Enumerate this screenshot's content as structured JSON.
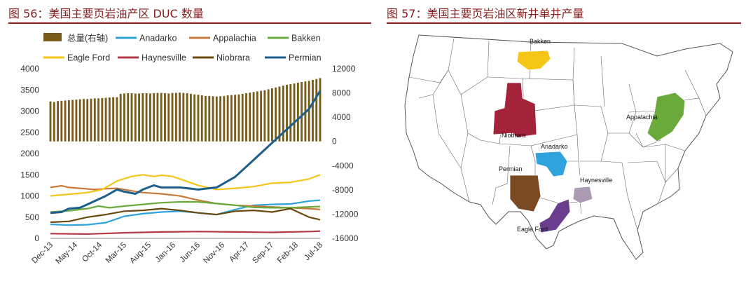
{
  "left_panel": {
    "title": "图 56：美国主要页岩油产区 DUC 数量"
  },
  "right_panel": {
    "title": "图 57：美国主要页岩油区新井单井产量",
    "regions": [
      {
        "name": "Bakken",
        "color": "#f5c518"
      },
      {
        "name": "Niobrara",
        "color": "#a3233a"
      },
      {
        "name": "Anadarko",
        "color": "#2ea3dc"
      },
      {
        "name": "Permian",
        "color": "#7a4a25"
      },
      {
        "name": "Haynesville",
        "color": "#a89bb2"
      },
      {
        "name": "Eagle Ford",
        "color": "#6a3d8f"
      },
      {
        "name": "Appalachia",
        "color": "#6aaa3a"
      }
    ]
  },
  "chart_data": {
    "type": "bar+line",
    "title": "",
    "xlabel": "",
    "ylabel": "",
    "ylim_left": [
      0,
      4000
    ],
    "ylim_right": [
      -16000,
      12000
    ],
    "yticks_left": [
      "4000",
      "3500",
      "3000",
      "2500",
      "2000",
      "1500",
      "1000",
      "500",
      "0"
    ],
    "yticks_right": [
      "12000",
      "8000",
      "4000",
      "0",
      "-4000",
      "-8000",
      "-12000",
      "-16000"
    ],
    "xticks": [
      "Dec-13",
      "May-14",
      "Oct-14",
      "Mar-15",
      "Aug-15",
      "Jan-16",
      "Jun-16",
      "Nov-16",
      "Apr-17",
      "Sep-17",
      "Feb-18",
      "Jul-18"
    ],
    "legend": [
      {
        "name": "总量(右轴)",
        "color": "#7a5c1a",
        "kind": "bar"
      },
      {
        "name": "Anadarko",
        "color": "#2fa3dc",
        "kind": "line"
      },
      {
        "name": "Appalachia",
        "color": "#c87a3a",
        "kind": "line"
      },
      {
        "name": "Bakken",
        "color": "#6aaa3a",
        "kind": "line"
      },
      {
        "name": "Eagle Ford",
        "color": "#f5c518",
        "kind": "line"
      },
      {
        "name": "Haynesville",
        "color": "#b23a4a",
        "kind": "line"
      },
      {
        "name": "Niobrara",
        "color": "#6b4a12",
        "kind": "line"
      },
      {
        "name": "Permian",
        "color": "#1d5e8a",
        "kind": "line"
      }
    ],
    "bar_series": {
      "name": "总量(右轴)",
      "axis": "right",
      "values": [
        6600,
        6500,
        6650,
        6700,
        6750,
        6800,
        6850,
        6900,
        6950,
        7000,
        7000,
        7050,
        7100,
        7100,
        7150,
        7200,
        7250,
        7300,
        7300,
        7850,
        7900,
        7950,
        7950,
        7900,
        7900,
        7950,
        7950,
        7900,
        7950,
        8000,
        8000,
        7950,
        7900,
        8000,
        8000,
        8050,
        8000,
        7950,
        7850,
        7750,
        7700,
        7600,
        7500,
        7500,
        7450,
        7400,
        7450,
        7500,
        7600,
        7650,
        7700,
        7750,
        7850,
        7950,
        8050,
        8150,
        8250,
        8350,
        8450,
        8600,
        8750,
        8900,
        9050,
        9200,
        9350,
        9450,
        9550,
        9700,
        9800,
        9900,
        10000,
        10150,
        10300,
        10450
      ]
    },
    "series": [
      {
        "name": "Anadarko",
        "x": [
          0,
          5,
          10,
          15,
          20,
          25,
          30,
          35,
          40,
          45,
          50,
          55,
          60,
          65,
          70,
          73
        ],
        "values": [
          330,
          310,
          320,
          370,
          520,
          580,
          620,
          640,
          600,
          560,
          680,
          780,
          800,
          810,
          880,
          900
        ]
      },
      {
        "name": "Appalachia",
        "x": [
          0,
          3,
          5,
          8,
          12,
          15,
          18,
          22,
          25,
          30,
          35,
          40,
          45,
          50,
          55,
          60,
          65,
          70,
          73
        ],
        "values": [
          1200,
          1240,
          1200,
          1180,
          1150,
          1170,
          1180,
          1120,
          1080,
          1050,
          1000,
          900,
          820,
          780,
          760,
          740,
          720,
          700,
          680
        ]
      },
      {
        "name": "Bakken",
        "x": [
          0,
          5,
          10,
          13,
          16,
          20,
          25,
          30,
          35,
          40,
          45,
          50,
          55,
          60,
          65,
          70,
          73
        ],
        "values": [
          620,
          650,
          700,
          760,
          720,
          760,
          800,
          840,
          860,
          860,
          820,
          780,
          730,
          720,
          720,
          740,
          750
        ]
      },
      {
        "name": "Eagle Ford",
        "x": [
          0,
          5,
          10,
          14,
          18,
          22,
          25,
          28,
          30,
          33,
          36,
          40,
          45,
          50,
          55,
          60,
          65,
          70,
          73
        ],
        "values": [
          1000,
          1040,
          1080,
          1150,
          1350,
          1460,
          1500,
          1460,
          1490,
          1460,
          1370,
          1250,
          1150,
          1180,
          1220,
          1300,
          1320,
          1400,
          1500
        ]
      },
      {
        "name": "Haynesville",
        "x": [
          0,
          10,
          20,
          30,
          40,
          50,
          60,
          70,
          73
        ],
        "values": [
          110,
          100,
          130,
          150,
          160,
          150,
          140,
          160,
          170
        ]
      },
      {
        "name": "Niobrara",
        "x": [
          0,
          5,
          10,
          15,
          20,
          25,
          30,
          35,
          40,
          45,
          50,
          55,
          60,
          65,
          70,
          73
        ],
        "values": [
          380,
          400,
          500,
          560,
          640,
          660,
          700,
          660,
          600,
          560,
          640,
          660,
          620,
          700,
          500,
          440
        ]
      },
      {
        "name": "Permian",
        "x": [
          0,
          3,
          5,
          8,
          10,
          12,
          15,
          18,
          20,
          23,
          25,
          28,
          30,
          35,
          40,
          45,
          50,
          55,
          60,
          65,
          70,
          73
        ],
        "values": [
          600,
          620,
          700,
          720,
          800,
          880,
          1000,
          1150,
          1100,
          1050,
          1150,
          1250,
          1200,
          1200,
          1150,
          1200,
          1450,
          1850,
          2250,
          2650,
          3050,
          3480
        ]
      }
    ]
  }
}
